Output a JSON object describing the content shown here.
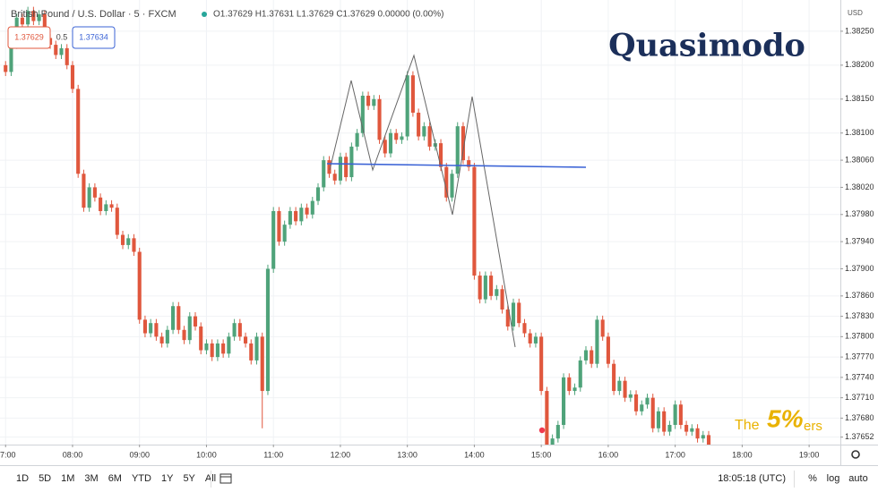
{
  "chart_data": {
    "type": "candlestick",
    "title": "British Pound / U.S. Dollar · 5 · FXCM",
    "legend_ohlc": "O1.37629 H1.37631 L1.37629 C1.37629 0.00000 (0.00%)",
    "badges": [
      "1.37629",
      "0.5",
      "1.37634"
    ],
    "watermark": "Quasimodo",
    "logo": [
      "The",
      "5%",
      "ers"
    ],
    "currency": "USD",
    "clock": "18:05:18 (UTC)",
    "ranges": [
      "1D",
      "5D",
      "1M",
      "3M",
      "6M",
      "YTD",
      "1Y",
      "5Y",
      "All"
    ],
    "scale_buttons": [
      "%",
      "log",
      "auto"
    ],
    "up_color": "#4fa37a",
    "down_color": "#e0573d",
    "xlim": [
      "06:55",
      "19:28"
    ],
    "xticks": [
      "07:00",
      "08:00",
      "09:00",
      "10:00",
      "11:00",
      "12:00",
      "13:00",
      "14:00",
      "15:00",
      "16:00",
      "17:00",
      "18:00",
      "19:00"
    ],
    "ylim": [
      1.37641,
      1.38296
    ],
    "yticks": [
      {
        "value": 1.3825,
        "label": "1.38250"
      },
      {
        "value": 1.382,
        "label": "1.38200"
      },
      {
        "value": 1.3815,
        "label": "1.38150"
      },
      {
        "value": 1.381,
        "label": "1.38100"
      },
      {
        "value": 1.3806,
        "label": "1.38060"
      },
      {
        "value": 1.3802,
        "label": "1.38020"
      },
      {
        "value": 1.3798,
        "label": "1.37980"
      },
      {
        "value": 1.3794,
        "label": "1.37940"
      },
      {
        "value": 1.379,
        "label": "1.37900"
      },
      {
        "value": 1.3786,
        "label": "1.37860"
      },
      {
        "value": 1.3783,
        "label": "1.37830"
      },
      {
        "value": 1.378,
        "label": "1.37800"
      },
      {
        "value": 1.3777,
        "label": "1.37770"
      },
      {
        "value": 1.3774,
        "label": "1.37740"
      },
      {
        "value": 1.3771,
        "label": "1.37710"
      },
      {
        "value": 1.3768,
        "label": "1.37680"
      },
      1.37652
    ],
    "start": "07:00",
    "step_minutes": 5,
    "open": [
      1.382,
      1.3819,
      1.3823,
      1.3827,
      1.3826,
      1.3828,
      1.38265,
      1.38275,
      1.3824,
      1.3823,
      1.38215,
      1.38225,
      1.382,
      1.38165,
      1.3804,
      1.3799,
      1.3802,
      1.38005,
      1.37985,
      1.37995,
      1.3799,
      1.3795,
      1.37935,
      1.37945,
      1.37925,
      1.37825,
      1.37805,
      1.3782,
      1.378,
      1.3779,
      1.3781,
      1.37845,
      1.3781,
      1.37795,
      1.3783,
      1.37815,
      1.3778,
      1.3779,
      1.3777,
      1.3779,
      1.37775,
      1.378,
      1.3782,
      1.378,
      1.3779,
      1.37765,
      1.378,
      1.3772,
      1.379,
      1.37985,
      1.3794,
      1.37965,
      1.37985,
      1.3797,
      1.3799,
      1.3798,
      1.38,
      1.3802,
      1.3806,
      1.3804,
      1.3803,
      1.38065,
      1.38035,
      1.3808,
      1.381,
      1.38155,
      1.3814,
      1.3815,
      1.3809,
      1.3807,
      1.381,
      1.3809,
      1.38095,
      1.38185,
      1.3813,
      1.38095,
      1.3811,
      1.3808,
      1.38085,
      1.3805,
      1.38005,
      1.3804,
      1.3811,
      1.3806,
      1.3805,
      1.3789,
      1.37855,
      1.3789,
      1.3786,
      1.3787,
      1.3784,
      1.37815,
      1.3785,
      1.3782,
      1.37805,
      1.3779,
      1.378,
      1.3772,
      1.3764,
      1.3765,
      1.3767,
      1.3774,
      1.3772,
      1.37725,
      1.37765,
      1.3778,
      1.3776,
      1.37825,
      1.378,
      1.3776,
      1.3772,
      1.37735,
      1.3771,
      1.37715,
      1.3769,
      1.377,
      1.3771,
      1.37665,
      1.3769,
      1.3766,
      1.3767,
      1.377,
      1.3767,
      1.3766,
      1.37665,
      1.3765,
      1.37655
    ],
    "high": [
      1.38206,
      1.38236,
      1.38276,
      1.38276,
      1.38286,
      1.38286,
      1.38281,
      1.38281,
      1.38246,
      1.38236,
      1.38231,
      1.38231,
      1.38206,
      1.38171,
      1.38046,
      1.38026,
      1.38026,
      1.38011,
      1.38001,
      1.38001,
      1.37996,
      1.37956,
      1.37951,
      1.37951,
      1.37931,
      1.37831,
      1.37826,
      1.37826,
      1.37806,
      1.37816,
      1.37851,
      1.37851,
      1.37816,
      1.37836,
      1.37836,
      1.37821,
      1.37796,
      1.37796,
      1.37796,
      1.37796,
      1.37806,
      1.37826,
      1.37826,
      1.37806,
      1.37796,
      1.37806,
      1.37806,
      1.37906,
      1.37991,
      1.37991,
      1.37971,
      1.37991,
      1.37991,
      1.37996,
      1.37996,
      1.38006,
      1.38026,
      1.38066,
      1.38066,
      1.38046,
      1.38071,
      1.38071,
      1.38086,
      1.38106,
      1.38161,
      1.38161,
      1.38156,
      1.38156,
      1.38096,
      1.38106,
      1.38106,
      1.38101,
      1.38191,
      1.38191,
      1.38136,
      1.38116,
      1.38116,
      1.38091,
      1.38091,
      1.38056,
      1.38046,
      1.38116,
      1.38116,
      1.38066,
      1.38056,
      1.37896,
      1.37896,
      1.37896,
      1.37876,
      1.37876,
      1.37846,
      1.37856,
      1.37856,
      1.37826,
      1.37811,
      1.37806,
      1.37806,
      1.37726,
      1.37656,
      1.37676,
      1.37746,
      1.37746,
      1.37731,
      1.37771,
      1.37786,
      1.37786,
      1.37831,
      1.37831,
      1.37806,
      1.37766,
      1.37741,
      1.37741,
      1.37721,
      1.37721,
      1.37706,
      1.37716,
      1.37716,
      1.37696,
      1.37696,
      1.37676,
      1.37706,
      1.37706,
      1.37676,
      1.37671,
      1.37671,
      1.37661,
      1.37661
    ],
    "low": [
      1.38184,
      1.38184,
      1.38224,
      1.38254,
      1.38254,
      1.38259,
      1.38259,
      1.38234,
      1.38224,
      1.38209,
      1.38209,
      1.38194,
      1.38159,
      1.38034,
      1.37984,
      1.37984,
      1.37999,
      1.37979,
      1.37979,
      1.37984,
      1.37944,
      1.37929,
      1.37929,
      1.37919,
      1.37819,
      1.37799,
      1.37799,
      1.37794,
      1.37784,
      1.37784,
      1.37804,
      1.37804,
      1.37789,
      1.37789,
      1.37809,
      1.37774,
      1.37774,
      1.37764,
      1.37764,
      1.37769,
      1.37769,
      1.37794,
      1.37794,
      1.37784,
      1.37759,
      1.37759,
      1.37665,
      1.37714,
      1.37894,
      1.37934,
      1.37934,
      1.37959,
      1.37964,
      1.37964,
      1.37974,
      1.37974,
      1.37994,
      1.38014,
      1.38034,
      1.38024,
      1.38024,
      1.38029,
      1.38029,
      1.38074,
      1.38094,
      1.38134,
      1.38134,
      1.38084,
      1.38064,
      1.38064,
      1.38084,
      1.38084,
      1.38089,
      1.38124,
      1.38089,
      1.38089,
      1.38074,
      1.38074,
      1.38044,
      1.37999,
      1.37999,
      1.38034,
      1.38054,
      1.38044,
      1.37884,
      1.37849,
      1.37849,
      1.37854,
      1.37854,
      1.37834,
      1.37809,
      1.37809,
      1.37814,
      1.37799,
      1.37784,
      1.37784,
      1.37714,
      1.37634,
      1.37634,
      1.37644,
      1.37664,
      1.37714,
      1.37714,
      1.37719,
      1.37759,
      1.37754,
      1.37754,
      1.37794,
      1.37754,
      1.37714,
      1.37714,
      1.37704,
      1.37704,
      1.37684,
      1.37684,
      1.37694,
      1.37659,
      1.37659,
      1.37654,
      1.37654,
      1.37664,
      1.37664,
      1.37654,
      1.37654,
      1.37644,
      1.37644,
      1.37634
    ],
    "close": [
      1.3819,
      1.3823,
      1.3827,
      1.3826,
      1.3828,
      1.38265,
      1.38275,
      1.3824,
      1.3823,
      1.38215,
      1.38225,
      1.382,
      1.38165,
      1.3804,
      1.3799,
      1.3802,
      1.38005,
      1.37985,
      1.37995,
      1.3799,
      1.3795,
      1.37935,
      1.37945,
      1.37925,
      1.37825,
      1.37805,
      1.3782,
      1.378,
      1.3779,
      1.3781,
      1.37845,
      1.3781,
      1.37795,
      1.3783,
      1.37815,
      1.3778,
      1.3779,
      1.3777,
      1.3779,
      1.37775,
      1.378,
      1.3782,
      1.378,
      1.3779,
      1.37765,
      1.378,
      1.3772,
      1.379,
      1.37985,
      1.3794,
      1.37965,
      1.37985,
      1.3797,
      1.3799,
      1.3798,
      1.38,
      1.3802,
      1.3806,
      1.3804,
      1.3803,
      1.38065,
      1.38035,
      1.3808,
      1.381,
      1.38155,
      1.3814,
      1.3815,
      1.3809,
      1.3807,
      1.381,
      1.3809,
      1.38095,
      1.38185,
      1.3813,
      1.38095,
      1.3811,
      1.3808,
      1.38085,
      1.3805,
      1.38005,
      1.3804,
      1.3811,
      1.3806,
      1.3805,
      1.3789,
      1.37855,
      1.3789,
      1.3786,
      1.3787,
      1.3784,
      1.37815,
      1.3785,
      1.3782,
      1.37805,
      1.3779,
      1.378,
      1.3772,
      1.3764,
      1.3765,
      1.3767,
      1.3774,
      1.3772,
      1.37725,
      1.37765,
      1.3778,
      1.3776,
      1.37825,
      1.378,
      1.3776,
      1.3772,
      1.37735,
      1.3771,
      1.37715,
      1.3769,
      1.377,
      1.3771,
      1.37665,
      1.3769,
      1.3766,
      1.3767,
      1.377,
      1.3767,
      1.3766,
      1.37665,
      1.3765,
      1.37655,
      1.3764
    ]
  }
}
